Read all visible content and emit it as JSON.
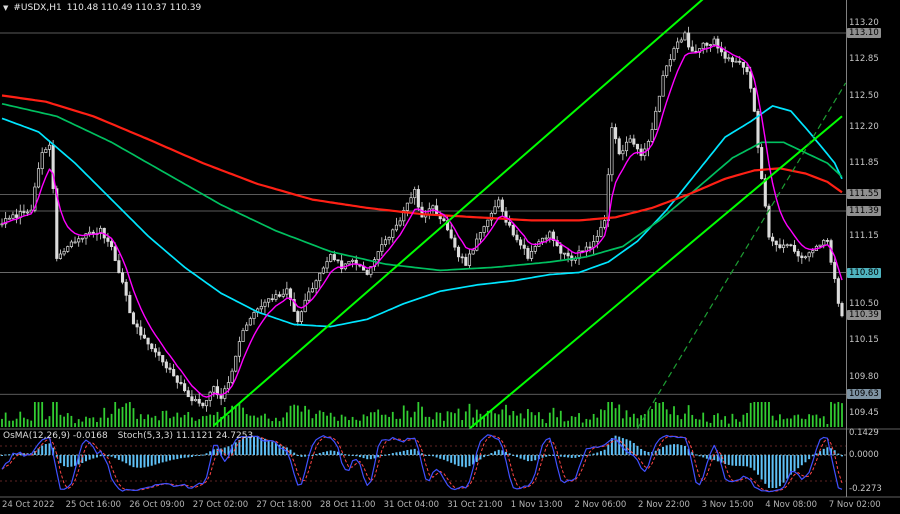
{
  "header": {
    "marker": "▼",
    "symbol": "#USDX,H1",
    "ohlc": "110.48 110.49 110.37 110.39"
  },
  "colors": {
    "background": "#000000",
    "candle_outline": "#dcdcdc",
    "bull_fill": "#000000",
    "bear_fill": "#dcdcdc",
    "volume": "#32cd32",
    "ma_red": "#ff2015",
    "ma_green": "#00c060",
    "ma_cyan": "#00e6ff",
    "ma_magenta": "#ff00ff",
    "trend": "#00ff00",
    "trend_dashed": "#1d9e33",
    "level": "#787878",
    "osma": "#5fc0f5",
    "stoch_main": "#4050ff",
    "stoch_signal": "#ff4545",
    "zero_line": "#b8b8b8",
    "separator": "#606060",
    "axis_line": "#808080"
  },
  "chart_data": {
    "type": "candlestick",
    "symbol": "#USDX,H1",
    "timeframe": "H1",
    "bars": 231,
    "ohlc_display": {
      "open": "110.48",
      "high": "110.49",
      "low": "110.37",
      "close": "110.39"
    },
    "price_path": [
      [
        0,
        111.28
      ],
      [
        4,
        111.35
      ],
      [
        8,
        111.42
      ],
      [
        11,
        111.95
      ],
      [
        13,
        112.02
      ],
      [
        14,
        111.6
      ],
      [
        15,
        110.92
      ],
      [
        18,
        111.05
      ],
      [
        22,
        111.15
      ],
      [
        27,
        111.2
      ],
      [
        30,
        111.05
      ],
      [
        33,
        110.7
      ],
      [
        36,
        110.3
      ],
      [
        40,
        110.12
      ],
      [
        44,
        109.95
      ],
      [
        48,
        109.75
      ],
      [
        52,
        109.58
      ],
      [
        55,
        109.52
      ],
      [
        58,
        109.72
      ],
      [
        60,
        109.58
      ],
      [
        63,
        109.85
      ],
      [
        66,
        110.25
      ],
      [
        70,
        110.45
      ],
      [
        74,
        110.55
      ],
      [
        78,
        110.62
      ],
      [
        81,
        110.35
      ],
      [
        84,
        110.6
      ],
      [
        87,
        110.78
      ],
      [
        90,
        110.98
      ],
      [
        93,
        110.85
      ],
      [
        96,
        110.92
      ],
      [
        100,
        110.8
      ],
      [
        104,
        111.05
      ],
      [
        108,
        111.25
      ],
      [
        111,
        111.45
      ],
      [
        113,
        111.58
      ],
      [
        115,
        111.32
      ],
      [
        118,
        111.42
      ],
      [
        121,
        111.28
      ],
      [
        124,
        111.02
      ],
      [
        127,
        110.88
      ],
      [
        130,
        111.1
      ],
      [
        133,
        111.3
      ],
      [
        136,
        111.52
      ],
      [
        138,
        111.3
      ],
      [
        141,
        111.12
      ],
      [
        144,
        110.95
      ],
      [
        147,
        111.1
      ],
      [
        150,
        111.18
      ],
      [
        153,
        111.0
      ],
      [
        156,
        110.92
      ],
      [
        159,
        111.02
      ],
      [
        162,
        111.08
      ],
      [
        165,
        111.3
      ],
      [
        167,
        112.2
      ],
      [
        169,
        111.95
      ],
      [
        172,
        112.08
      ],
      [
        175,
        111.92
      ],
      [
        178,
        112.15
      ],
      [
        181,
        112.7
      ],
      [
        184,
        112.95
      ],
      [
        187,
        113.08
      ],
      [
        189,
        112.9
      ],
      [
        192,
        112.98
      ],
      [
        195,
        113.02
      ],
      [
        198,
        112.88
      ],
      [
        201,
        112.82
      ],
      [
        204,
        112.75
      ],
      [
        206,
        112.35
      ],
      [
        208,
        111.7
      ],
      [
        210,
        111.15
      ],
      [
        213,
        111.02
      ],
      [
        216,
        111.08
      ],
      [
        219,
        110.92
      ],
      [
        222,
        111.0
      ],
      [
        224,
        111.08
      ],
      [
        226,
        111.12
      ],
      [
        228,
        110.72
      ],
      [
        229,
        110.5
      ],
      [
        230,
        110.39
      ]
    ],
    "ma_lines": {
      "red": [
        [
          0,
          112.5
        ],
        [
          12,
          112.44
        ],
        [
          25,
          112.3
        ],
        [
          40,
          112.08
        ],
        [
          55,
          111.85
        ],
        [
          70,
          111.65
        ],
        [
          85,
          111.5
        ],
        [
          100,
          111.42
        ],
        [
          115,
          111.36
        ],
        [
          130,
          111.33
        ],
        [
          145,
          111.3
        ],
        [
          158,
          111.3
        ],
        [
          168,
          111.33
        ],
        [
          178,
          111.42
        ],
        [
          188,
          111.55
        ],
        [
          198,
          111.7
        ],
        [
          206,
          111.78
        ],
        [
          213,
          111.8
        ],
        [
          220,
          111.75
        ],
        [
          226,
          111.67
        ],
        [
          230,
          111.57
        ]
      ],
      "green": [
        [
          0,
          112.42
        ],
        [
          15,
          112.3
        ],
        [
          30,
          112.05
        ],
        [
          45,
          111.75
        ],
        [
          60,
          111.45
        ],
        [
          75,
          111.2
        ],
        [
          90,
          111.0
        ],
        [
          105,
          110.88
        ],
        [
          120,
          110.82
        ],
        [
          135,
          110.85
        ],
        [
          150,
          110.9
        ],
        [
          160,
          110.95
        ],
        [
          170,
          111.05
        ],
        [
          180,
          111.3
        ],
        [
          190,
          111.6
        ],
        [
          200,
          111.9
        ],
        [
          208,
          112.05
        ],
        [
          214,
          112.05
        ],
        [
          220,
          111.95
        ],
        [
          226,
          111.85
        ],
        [
          230,
          111.72
        ]
      ],
      "cyan": [
        [
          0,
          112.28
        ],
        [
          10,
          112.15
        ],
        [
          20,
          111.85
        ],
        [
          30,
          111.5
        ],
        [
          40,
          111.15
        ],
        [
          50,
          110.85
        ],
        [
          60,
          110.6
        ],
        [
          70,
          110.42
        ],
        [
          80,
          110.3
        ],
        [
          90,
          110.28
        ],
        [
          100,
          110.35
        ],
        [
          110,
          110.5
        ],
        [
          120,
          110.62
        ],
        [
          130,
          110.68
        ],
        [
          140,
          110.72
        ],
        [
          150,
          110.78
        ],
        [
          158,
          110.8
        ],
        [
          166,
          110.9
        ],
        [
          174,
          111.1
        ],
        [
          182,
          111.4
        ],
        [
          190,
          111.75
        ],
        [
          198,
          112.1
        ],
        [
          205,
          112.25
        ],
        [
          211,
          112.4
        ],
        [
          216,
          112.35
        ],
        [
          221,
          112.15
        ],
        [
          225,
          111.98
        ],
        [
          228,
          111.85
        ],
        [
          230,
          111.7
        ]
      ]
    },
    "trendlines": [
      {
        "from": [
          58,
          109.33
        ],
        "to": [
          196,
          113.55
        ],
        "style": "solid",
        "width": 2
      },
      {
        "from": [
          128,
          109.3
        ],
        "to": [
          230,
          112.3
        ],
        "style": "solid",
        "width": 2
      },
      {
        "from": [
          174,
          109.3
        ],
        "to": [
          231,
          112.62
        ],
        "style": "dashed",
        "width": 1.2
      }
    ],
    "hlines": [
      {
        "price": 113.1
      },
      {
        "price": 111.55
      },
      {
        "price": 111.39
      },
      {
        "price": 110.8
      },
      {
        "price": 109.63
      }
    ],
    "price_axis": [
      {
        "text": "113.20",
        "price": 113.2
      },
      {
        "text": "113.10",
        "price": 113.1,
        "box": true
      },
      {
        "text": "112.85",
        "price": 112.85
      },
      {
        "text": "112.50",
        "price": 112.5
      },
      {
        "text": "112.20",
        "price": 112.2
      },
      {
        "text": "111.85",
        "price": 111.85
      },
      {
        "text": "111.55",
        "price": 111.55,
        "box": true
      },
      {
        "text": "111.39",
        "price": 111.39,
        "box": true
      },
      {
        "text": "111.15",
        "price": 111.15
      },
      {
        "text": "110.80",
        "price": 110.8,
        "box": true,
        "boxColor": "#4fb3bf"
      },
      {
        "text": "110.50",
        "price": 110.5
      },
      {
        "text": "110.39",
        "price": 110.39,
        "box": true
      },
      {
        "text": "110.15",
        "price": 110.15
      },
      {
        "text": "109.80",
        "price": 109.8
      },
      {
        "text": "109.63",
        "price": 109.63,
        "box": true,
        "boxColor": "#7e93a3"
      },
      {
        "text": "109.45",
        "price": 109.45
      }
    ],
    "time_axis": [
      "24 Oct 2022",
      "25 Oct 16:00",
      "26 Oct 09:00",
      "27 Oct 02:00",
      "27 Oct 18:00",
      "28 Oct 11:00",
      "31 Oct 04:00",
      "31 Oct 21:00",
      "1 Nov 13:00",
      "2 Nov 06:00",
      "2 Nov 22:00",
      "3 Nov 15:00",
      "4 Nov 08:00",
      "7 Nov 02:00"
    ],
    "indicator": {
      "osma_label": "OsMA(12,26,9) -0.0168",
      "stoch_label": "Stoch(5,3,3) 11.1121 24.7253",
      "axis": [
        {
          "text": "0.1429",
          "value": 0.1429
        },
        {
          "text": "0.0000",
          "value": 0
        },
        {
          "text": "-0.2273",
          "value": -0.2273
        }
      ]
    }
  }
}
